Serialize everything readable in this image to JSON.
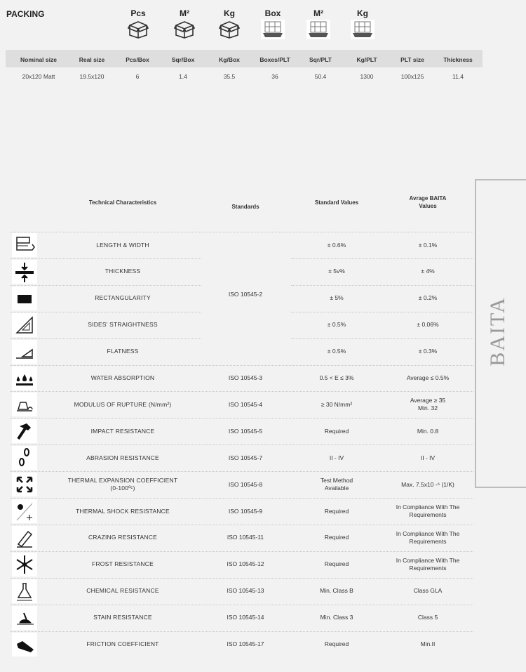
{
  "packing": {
    "title": "PACKING",
    "icons": [
      {
        "label": "Pcs",
        "icon": "box-icon"
      },
      {
        "label": "M²",
        "icon": "box-icon"
      },
      {
        "label": "Kg",
        "icon": "box-icon"
      },
      {
        "label": "Box",
        "icon": "pallet-icon"
      },
      {
        "label": "M²",
        "icon": "pallet-icon"
      },
      {
        "label": "Kg",
        "icon": "pallet-icon"
      }
    ],
    "headers": [
      "Nominal size",
      "Real size",
      "Pcs/Box",
      "Sqr/Box",
      "Kg/Box",
      "Boxes/PLT",
      "Sqr/PLT",
      "Kg/PLT",
      "PLT size",
      "Thickness"
    ],
    "values": [
      "20x120 Matt",
      "19.5x120",
      "6",
      "1.4",
      "35.5",
      "36",
      "50.4",
      "1300",
      "100x125",
      "11.4"
    ]
  },
  "tech": {
    "headers": {
      "characteristics": "Technical Characteristics",
      "standards": "Standards",
      "standard_values": "Standard Values",
      "avg": "Avrage BAITA Values"
    },
    "shared_standard": "ISO 10545-2",
    "rows": [
      {
        "icon": "length-width-icon",
        "name": "LENGTH & WIDTH",
        "standard": "",
        "value": "± 0.6%",
        "avg": "± 0.1%"
      },
      {
        "icon": "thickness-icon",
        "name": "THICKNESS",
        "standard": "",
        "value": "± 5v%",
        "avg": "± 4%"
      },
      {
        "icon": "rectangularity-icon",
        "name": "RECTANGULARITY",
        "standard": "",
        "value": "± 5%",
        "avg": "± 0.2%"
      },
      {
        "icon": "set-square-icon",
        "name": "SIDES' STRAIGHTNESS",
        "standard": "",
        "value": "± 0.5%",
        "avg": "± 0.06%"
      },
      {
        "icon": "flatness-icon",
        "name": "FLATNESS",
        "standard": "",
        "value": "± 0.5%",
        "avg": "± 0.3%"
      },
      {
        "icon": "water-drops-icon",
        "name": "WATER ABSORPTION",
        "standard": "ISO 10545-3",
        "value": "0.5 < E ≤ 3%",
        "avg": "Average ≤ 0.5%"
      },
      {
        "icon": "weight-icon",
        "name": "MODULUS OF RUPTURE (N/mm²)",
        "standard": "ISO 10545-4",
        "value": "≥ 30 N/mm²",
        "avg": "Average ≥ 35\nMin.        32"
      },
      {
        "icon": "hammer-icon",
        "name": "IMPACT RESISTANCE",
        "standard": "ISO 10545-5",
        "value": "Required",
        "avg": "Min. 0.8"
      },
      {
        "icon": "footprints-icon",
        "name": "ABRASION RESISTANCE",
        "standard": "ISO 10545-7",
        "value": "II - IV",
        "avg": "II - IV"
      },
      {
        "icon": "expand-arrows-icon",
        "name": "THERMAL EXPANSION COEFFICIENT\n(0-100ºᶜ)",
        "standard": "ISO 10545-8",
        "value": "Test Method\nAvailable",
        "avg": "Max. 7.5x10 -⁶ (1/K)"
      },
      {
        "icon": "sun-snow-icon",
        "name": "THERMAL SHOCK RESISTANCE",
        "standard": "ISO 10545-9",
        "value": "Required",
        "avg": "In Compliance With The\nRequirements"
      },
      {
        "icon": "crazing-icon",
        "name": "CRAZING RESISTANCE",
        "standard": "ISO 10545-11",
        "value": "Required",
        "avg": "In Compliance With The\nRequirements"
      },
      {
        "icon": "snowflake-icon",
        "name": "FROST RESISTANCE",
        "standard": "ISO 10545-12",
        "value": "Required",
        "avg": "In Compliance With The\nRequirements"
      },
      {
        "icon": "flask-icon",
        "name": "CHEMICAL RESISTANCE",
        "standard": "ISO 10545-13",
        "value": "Min. Class B",
        "avg": "Class GLA"
      },
      {
        "icon": "stain-icon",
        "name": "STAIN RESISTANCE",
        "standard": "ISO 10545-14",
        "value": "Min. Class 3",
        "avg": "Class 5"
      },
      {
        "icon": "shoe-icon",
        "name": "FRICTION COEFFICIENT",
        "standard": "ISO 10545-17",
        "value": "Required",
        "avg": "Min.II"
      }
    ]
  },
  "brand": "BAITA"
}
